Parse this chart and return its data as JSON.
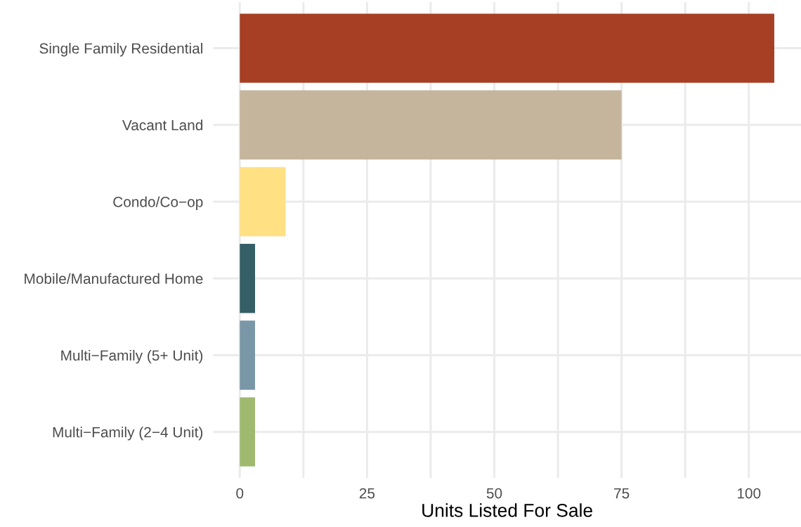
{
  "chart_data": {
    "type": "bar",
    "orientation": "horizontal",
    "xlabel": "Units Listed For Sale",
    "categories": [
      "Single Family Residential",
      "Vacant Land",
      "Condo/Co−op",
      "Mobile/Manufactured Home",
      "Multi−Family (5+ Unit)",
      "Multi−Family (2−4 Unit)"
    ],
    "values": [
      105,
      75,
      9,
      3,
      3,
      3
    ],
    "colors": [
      "#a63f24",
      "#c4b59c",
      "#ffe083",
      "#355f66",
      "#7a97a8",
      "#9fba6f"
    ],
    "xlim": [
      -5.25,
      110.25
    ],
    "xticks": [
      0,
      {
        "value": 12.5,
        "label": null
      },
      25,
      {
        "value": 37.5,
        "label": null
      },
      50,
      {
        "value": 62.5,
        "label": null
      },
      75,
      {
        "value": 87.5,
        "label": null
      },
      100
    ],
    "grid": true
  }
}
